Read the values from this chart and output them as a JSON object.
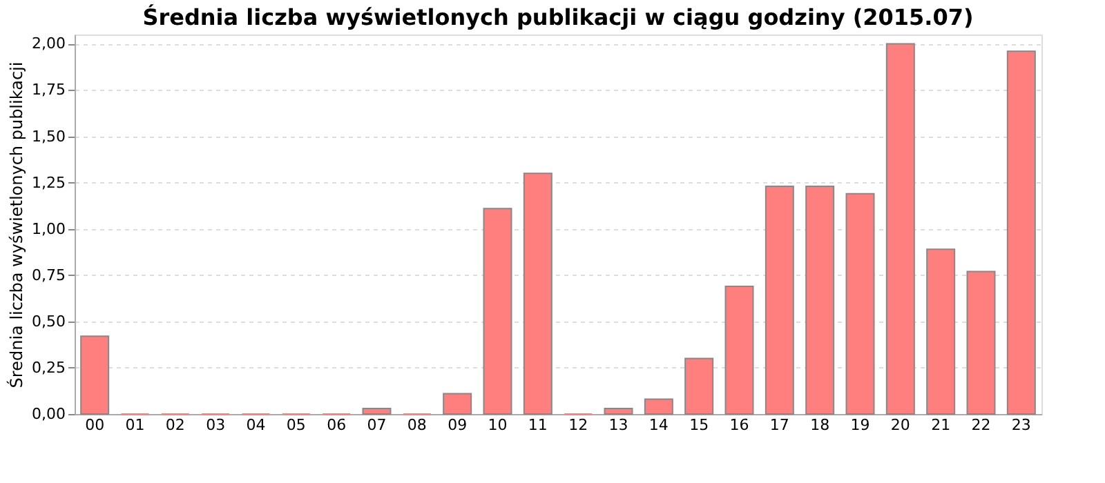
{
  "chart_data": {
    "type": "bar",
    "title": "Średnia liczba wyświetlonych publikacji w ciągu godziny (2015.07)",
    "ylabel": "Średnia liczba wyświetlonych publikacji",
    "categories": [
      "00",
      "01",
      "02",
      "03",
      "04",
      "05",
      "06",
      "07",
      "08",
      "09",
      "10",
      "11",
      "12",
      "13",
      "14",
      "15",
      "16",
      "17",
      "18",
      "19",
      "20",
      "21",
      "22",
      "23"
    ],
    "values": [
      0.42,
      0,
      0,
      0,
      0,
      0,
      0,
      0.03,
      0,
      0.11,
      1.11,
      1.3,
      0,
      0.03,
      0.08,
      0.3,
      0.69,
      1.23,
      1.23,
      1.19,
      2.0,
      0.89,
      0.77,
      1.96
    ],
    "color": "#ff7f7f",
    "ylim": [
      0,
      2.05
    ],
    "yticks": [
      {
        "value": 0,
        "label": "0,00"
      },
      {
        "value": 0.25,
        "label": "0,25"
      },
      {
        "value": 0.5,
        "label": "0,50"
      },
      {
        "value": 0.75,
        "label": "0,75"
      },
      {
        "value": 1,
        "label": "1,00"
      },
      {
        "value": 1.25,
        "label": "1,25"
      },
      {
        "value": 1.5,
        "label": "1,50"
      },
      {
        "value": 1.75,
        "label": "1,75"
      },
      {
        "value": 2,
        "label": "2,00"
      }
    ],
    "grid": "y"
  }
}
